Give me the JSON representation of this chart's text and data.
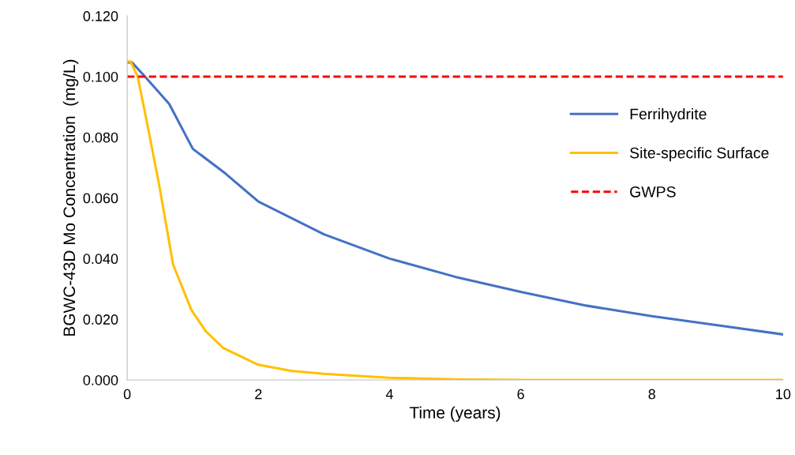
{
  "chart_data": {
    "type": "line",
    "xlabel": "Time (years)",
    "ylabel": "BGWC-43D Mo Concentration  (mg/L)",
    "xlim": [
      0,
      10
    ],
    "xticks": [
      0,
      2,
      4,
      6,
      8,
      10
    ],
    "ylim": [
      0,
      0.12
    ],
    "yticks": [
      {
        "value": 0,
        "label": "0.000"
      },
      {
        "value": 0.02,
        "label": "0.020"
      },
      {
        "value": 0.04,
        "label": "0.040"
      },
      {
        "value": 0.06,
        "label": "0.060"
      },
      {
        "value": 0.08,
        "label": "0.080"
      },
      {
        "value": 0.1,
        "label": "0.100"
      },
      {
        "value": 0.12,
        "label": "0.120"
      }
    ],
    "grid": false,
    "legend": "right",
    "marker": "none",
    "series": [
      {
        "name": "Ferrihydrite",
        "color": "#4472c4",
        "line_style": "solid",
        "x": [
          0,
          0.07,
          0.25,
          0.64,
          1,
          1.5,
          2,
          3,
          4,
          5,
          6,
          7,
          8,
          9,
          10
        ],
        "values": [
          0.1047,
          0.1047,
          0.1005,
          0.091,
          0.0762,
          0.068,
          0.0588,
          0.048,
          0.04,
          0.034,
          0.029,
          0.0245,
          0.021,
          0.018,
          0.015
        ]
      },
      {
        "name": "Site-specific Surface",
        "color": "#ffc000",
        "line_style": "solid",
        "x": [
          0,
          0.05,
          0.16,
          0.3,
          0.49,
          0.7,
          0.98,
          1.2,
          1.46,
          2,
          2.5,
          3,
          4,
          5,
          6,
          10
        ],
        "values": [
          0.105,
          0.105,
          0.1,
          0.085,
          0.064,
          0.038,
          0.023,
          0.016,
          0.0106,
          0.005,
          0.003,
          0.002,
          0.0007,
          0.0002,
          0,
          0
        ]
      },
      {
        "name": "GWPS",
        "color": "#ff0000",
        "line_style": "dashed",
        "x": [
          0,
          10
        ],
        "values": [
          0.1,
          0.1
        ]
      }
    ]
  }
}
